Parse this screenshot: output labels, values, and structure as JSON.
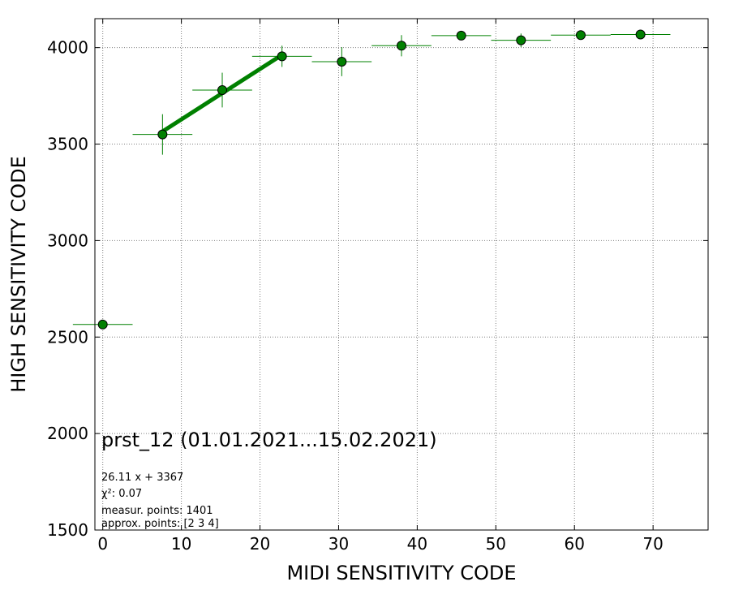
{
  "chart_data": {
    "type": "scatter",
    "title": "prst_12 (01.01.2021...15.02.2021)",
    "xlabel": "MIDI SENSITIVITY CODE",
    "ylabel": "HIGH SENSITIVITY CODE",
    "xlim": [
      -1,
      77
    ],
    "ylim": [
      1500,
      4150
    ],
    "xticks": [
      0,
      10,
      20,
      30,
      40,
      50,
      60,
      70
    ],
    "yticks": [
      1500,
      2000,
      2500,
      3000,
      3500,
      4000
    ],
    "grid": true,
    "series": [
      {
        "kind": "errorbar",
        "color": "#008000",
        "points": [
          {
            "x": 0.0,
            "y": 2565,
            "xerr": 3.8,
            "yerr": 0
          },
          {
            "x": 7.6,
            "y": 3550,
            "xerr": 3.8,
            "yerr": 105
          },
          {
            "x": 15.2,
            "y": 3780,
            "xerr": 3.8,
            "yerr": 90
          },
          {
            "x": 22.8,
            "y": 3955,
            "xerr": 3.8,
            "yerr": 55
          },
          {
            "x": 30.4,
            "y": 3927,
            "xerr": 3.8,
            "yerr": 75
          },
          {
            "x": 38.0,
            "y": 4010,
            "xerr": 3.8,
            "yerr": 55
          },
          {
            "x": 45.6,
            "y": 4062,
            "xerr": 3.8,
            "yerr": 10
          },
          {
            "x": 53.2,
            "y": 4038,
            "xerr": 3.8,
            "yerr": 35
          },
          {
            "x": 60.8,
            "y": 4065,
            "xerr": 3.8,
            "yerr": 10
          },
          {
            "x": 68.4,
            "y": 4068,
            "xerr": 3.8,
            "yerr": 10
          }
        ]
      },
      {
        "kind": "fit-line",
        "color": "#008000",
        "slope": 26.11,
        "intercept": 3367,
        "x_range": [
          7.6,
          22.8
        ]
      }
    ],
    "annotations": [
      "26.11 x + 3367",
      "χ²: 0.07",
      "measur. points: 1401",
      "approx. points: [2 3 4]"
    ]
  }
}
